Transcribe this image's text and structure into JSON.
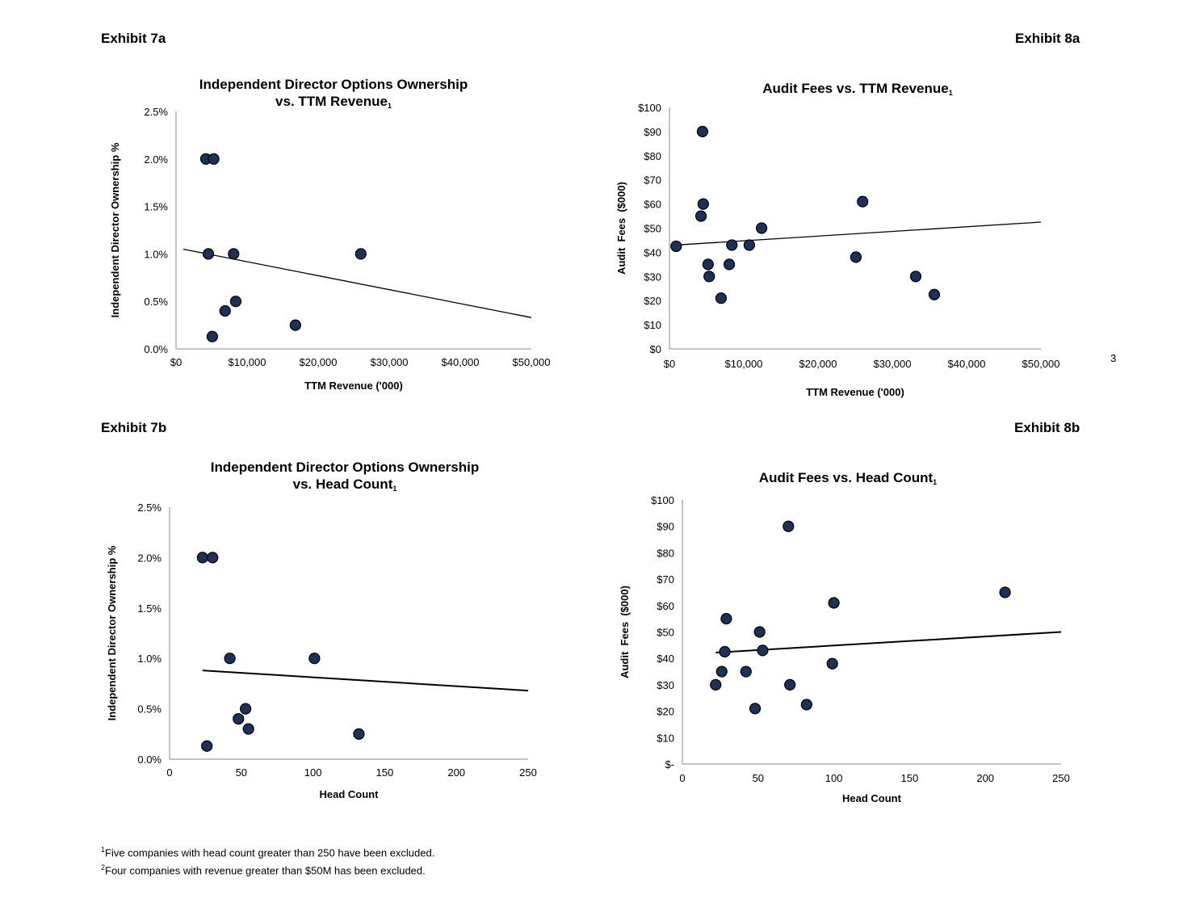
{
  "exhibits": {
    "e7a": "Exhibit 7a",
    "e8a": "Exhibit 8a",
    "e7b": "Exhibit 7b",
    "e8b": "Exhibit 8b"
  },
  "page_number": "3",
  "footnotes": [
    {
      "mark": "1",
      "text": "Five companies with head count greater than 250 have been excluded."
    },
    {
      "mark": "2",
      "text": "Four companies with revenue greater than $50M has been excluded."
    }
  ],
  "colors": {
    "marker": "#1b3157",
    "marker_edge": "#000000",
    "trendline": "#000000"
  },
  "chart_data": [
    {
      "type": "scatter",
      "title": [
        "Independent Director Options Ownership",
        "vs. TTM Revenue"
      ],
      "title_sup": "1",
      "xlabel": "TTM Revenue ('000)",
      "ylabel": "Independent Director Ownership %",
      "xlim": [
        0,
        50000
      ],
      "ylim": [
        0,
        2.5
      ],
      "xticks": [
        0,
        10000,
        20000,
        30000,
        40000,
        50000
      ],
      "xtick_labels": [
        "$0",
        "$10,000",
        "$20,000",
        "$30,000",
        "$40,000",
        "$50,000"
      ],
      "yticks": [
        0,
        0.5,
        1.0,
        1.5,
        2.0,
        2.5
      ],
      "ytick_labels": [
        "0.0%",
        "0.5%",
        "1.0%",
        "1.5%",
        "2.0%",
        "2.5%"
      ],
      "points": [
        [
          4200,
          2.0
        ],
        [
          5300,
          2.0
        ],
        [
          4550,
          1.0
        ],
        [
          8100,
          1.0
        ],
        [
          26000,
          1.0
        ],
        [
          8400,
          0.5
        ],
        [
          6900,
          0.4
        ],
        [
          5100,
          0.13
        ],
        [
          16800,
          0.25
        ]
      ],
      "trendline": {
        "x": [
          1000,
          50000
        ],
        "y": [
          1.05,
          0.33
        ]
      },
      "grid": false,
      "legend": "none"
    },
    {
      "type": "scatter",
      "title": [
        "Audit Fees vs. TTM Revenue"
      ],
      "title_sup": "1",
      "xlabel": "TTM Revenue ('000)",
      "ylabel": "Audit  Fees  ($000)",
      "xlim": [
        0,
        50000
      ],
      "ylim": [
        0,
        100
      ],
      "xticks": [
        0,
        10000,
        20000,
        30000,
        40000,
        50000
      ],
      "xtick_labels": [
        "$0",
        "$10,000",
        "$20,000",
        "$30,000",
        "$40,000",
        "$50,000"
      ],
      "yticks": [
        0,
        10,
        20,
        30,
        40,
        50,
        60,
        70,
        80,
        90,
        100
      ],
      "ytick_labels": [
        "$0",
        "$10",
        "$20",
        "$30",
        "$40",
        "$50",
        "$60",
        "$70",
        "$80",
        "$90",
        "$100"
      ],
      "points": [
        [
          4450,
          90
        ],
        [
          4550,
          60
        ],
        [
          4250,
          55
        ],
        [
          900,
          42.5
        ],
        [
          5200,
          35
        ],
        [
          5350,
          30
        ],
        [
          6950,
          21
        ],
        [
          8050,
          35
        ],
        [
          8400,
          43
        ],
        [
          10750,
          43
        ],
        [
          12400,
          50
        ],
        [
          26000,
          61
        ],
        [
          25100,
          38
        ],
        [
          33150,
          30
        ],
        [
          35650,
          22.5
        ]
      ],
      "trendline": {
        "x": [
          800,
          50000
        ],
        "y": [
          43,
          52.5
        ]
      },
      "grid": false,
      "legend": "none"
    },
    {
      "type": "scatter",
      "title": [
        "Independent Director Options Ownership",
        "vs. Head Count"
      ],
      "title_sup": "1",
      "xlabel": "Head Count",
      "ylabel": "Independent Director Ownership %",
      "xlim": [
        0,
        250
      ],
      "ylim": [
        0,
        2.5
      ],
      "xticks": [
        0,
        50,
        100,
        150,
        200,
        250
      ],
      "xtick_labels": [
        "0",
        "50",
        "100",
        "150",
        "200",
        "250"
      ],
      "yticks": [
        0,
        0.5,
        1.0,
        1.5,
        2.0,
        2.5
      ],
      "ytick_labels": [
        "0.0%",
        "0.5%",
        "1.0%",
        "1.5%",
        "2.0%",
        "2.5%"
      ],
      "points": [
        [
          23,
          2.0
        ],
        [
          30,
          2.0
        ],
        [
          42,
          1.0
        ],
        [
          101,
          1.0
        ],
        [
          53,
          0.5
        ],
        [
          48,
          0.4
        ],
        [
          55,
          0.3
        ],
        [
          26,
          0.13
        ],
        [
          132,
          0.25
        ]
      ],
      "trendline": {
        "x": [
          23,
          250
        ],
        "y": [
          0.88,
          0.68
        ]
      },
      "grid": false,
      "legend": "none"
    },
    {
      "type": "scatter",
      "title": [
        "Audit Fees vs. Head Count"
      ],
      "title_sup": "1",
      "xlabel": "Head Count",
      "ylabel": "Audit  Fees  ($000)",
      "xlim": [
        0,
        250
      ],
      "ylim": [
        0,
        100
      ],
      "xticks": [
        0,
        50,
        100,
        150,
        200,
        250
      ],
      "xtick_labels": [
        "0",
        "50",
        "100",
        "150",
        "200",
        "250"
      ],
      "yticks": [
        0,
        10,
        20,
        30,
        40,
        50,
        60,
        70,
        80,
        90,
        100
      ],
      "ytick_labels": [
        "$-",
        "$10",
        "$20",
        "$30",
        "$40",
        "$50",
        "$60",
        "$70",
        "$80",
        "$90",
        "$100"
      ],
      "points": [
        [
          70,
          90
        ],
        [
          213,
          65
        ],
        [
          100,
          61
        ],
        [
          29,
          55
        ],
        [
          51,
          50
        ],
        [
          53,
          43
        ],
        [
          28,
          42.5
        ],
        [
          26,
          35
        ],
        [
          42,
          35
        ],
        [
          22,
          30
        ],
        [
          71,
          30
        ],
        [
          99,
          38
        ],
        [
          48,
          21
        ],
        [
          82,
          22.5
        ]
      ],
      "trendline": {
        "x": [
          22,
          250
        ],
        "y": [
          42.2,
          50
        ]
      },
      "grid": false,
      "legend": "none"
    }
  ]
}
